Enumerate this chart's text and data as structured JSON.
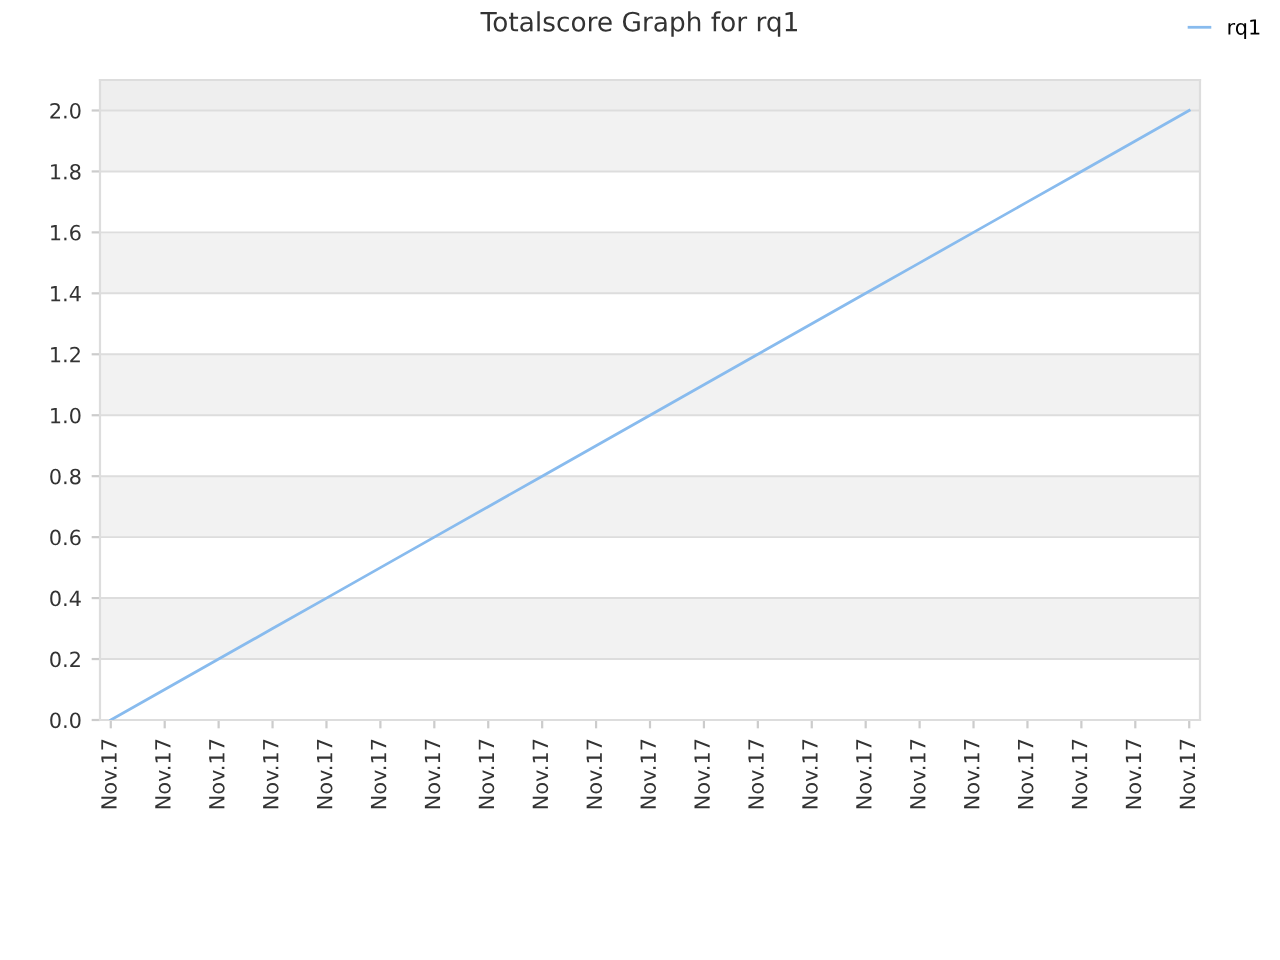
{
  "chart_data": {
    "type": "line",
    "title": "Totalscore Graph for rq1",
    "categories": [
      "Nov.17",
      "Nov.17",
      "Nov.17",
      "Nov.17",
      "Nov.17",
      "Nov.17",
      "Nov.17",
      "Nov.17",
      "Nov.17",
      "Nov.17",
      "Nov.17",
      "Nov.17",
      "Nov.17",
      "Nov.17",
      "Nov.17",
      "Nov.17",
      "Nov.17",
      "Nov.17",
      "Nov.17",
      "Nov.17",
      "Nov.17"
    ],
    "series": [
      {
        "name": "rq1",
        "color": "#88bbee",
        "values": [
          0.0,
          0.1,
          0.2,
          0.3,
          0.4,
          0.5,
          0.6,
          0.7,
          0.8,
          0.9,
          1.0,
          1.1,
          1.2,
          1.3,
          1.4,
          1.5,
          1.6,
          1.7,
          1.8,
          1.9,
          2.0
        ]
      }
    ],
    "ylim": [
      0,
      2.1
    ],
    "yticks": [
      {
        "value": 0,
        "label": "0.0"
      },
      {
        "value": 0.2,
        "label": "0.2"
      },
      {
        "value": 0.4,
        "label": "0.4"
      },
      {
        "value": 0.6,
        "label": "0.6"
      },
      {
        "value": 0.8,
        "label": "0.8"
      },
      {
        "value": 1.0,
        "label": "1.0"
      },
      {
        "value": 1.2,
        "label": "1.2"
      },
      {
        "value": 1.4,
        "label": "1.4"
      },
      {
        "value": 1.6,
        "label": "1.6"
      },
      {
        "value": 1.8,
        "label": "1.8"
      },
      {
        "value": 2.0,
        "label": "2.0"
      }
    ],
    "bands": [
      {
        "axis": "y",
        "from": 0.2,
        "to": 0.4,
        "color": "#f2f2f2"
      },
      {
        "axis": "y",
        "from": 0.6,
        "to": 0.8,
        "color": "#f2f2f2"
      },
      {
        "axis": "y",
        "from": 1.0,
        "to": 1.2,
        "color": "#f2f2f2"
      },
      {
        "axis": "y",
        "from": 1.4,
        "to": 1.6,
        "color": "#f2f2f2"
      },
      {
        "axis": "y",
        "from": 1.8,
        "to": 2.0,
        "color": "#f2f2f2"
      },
      {
        "axis": "y",
        "from": 2.0,
        "to": 2.1,
        "color": "#eeeeee"
      }
    ],
    "grid": "y",
    "legend": "top right",
    "marker": "none",
    "line_style": "solid"
  }
}
